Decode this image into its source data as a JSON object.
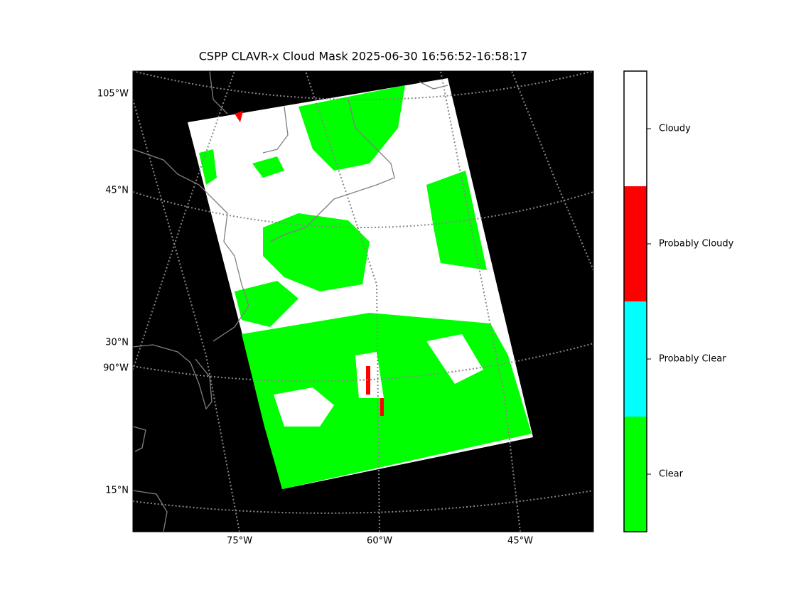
{
  "title": "CSPP CLAVR-x Cloud Mask 2025-06-30 16:56:52-16:58:17",
  "map": {
    "left_labels": [
      "105°W",
      "45°N",
      "30°N",
      "90°W",
      "15°N"
    ],
    "bottom_labels": [
      "75°W",
      "60°W",
      "45°W"
    ]
  },
  "colorbar": {
    "categories": [
      {
        "label": "Cloudy",
        "color": "#ffffff"
      },
      {
        "label": "Probably Cloudy",
        "color": "#ff0000"
      },
      {
        "label": "Probably Clear",
        "color": "#00ffff"
      },
      {
        "label": "Clear",
        "color": "#00ff00"
      }
    ]
  }
}
